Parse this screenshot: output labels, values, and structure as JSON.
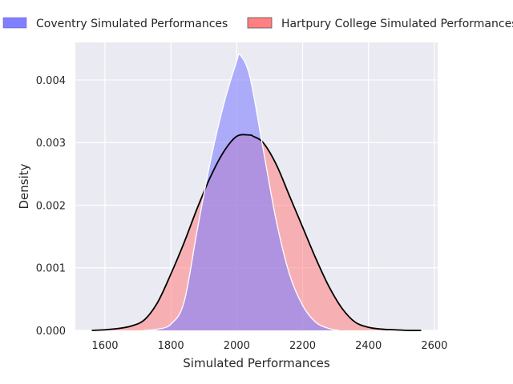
{
  "chart_data": {
    "type": "area",
    "title": "",
    "xlabel": "Simulated Performances",
    "ylabel": "Density",
    "xlim": [
      1510,
      2610
    ],
    "ylim": [
      0,
      0.0046
    ],
    "x_ticks": [
      1600,
      1800,
      2000,
      2200,
      2400,
      2600
    ],
    "y_ticks": [
      0.0,
      0.001,
      0.002,
      0.003,
      0.004
    ],
    "y_tick_labels": [
      "0.000",
      "0.001",
      "0.002",
      "0.003",
      "0.004"
    ],
    "grid": true,
    "legend_position": "top",
    "series": [
      {
        "name": "Coventry Simulated Performances",
        "color": "#8080ff",
        "fill_opacity": 0.6,
        "line_color": "#ffffff",
        "x": [
          1720,
          1760,
          1800,
          1840,
          1880,
          1920,
          1960,
          2000,
          2010,
          2040,
          2080,
          2120,
          2160,
          2200,
          2240,
          2280,
          2310
        ],
        "y": [
          0.0,
          2e-05,
          0.0001,
          0.00045,
          0.0016,
          0.0027,
          0.0036,
          0.0043,
          0.0044,
          0.00405,
          0.0029,
          0.00175,
          0.0009,
          0.0004,
          0.00013,
          3e-05,
          0.0
        ]
      },
      {
        "name": "Hartpury College Simulated Performances",
        "color": "#ff8080",
        "fill_opacity": 0.55,
        "line_color": "#000000",
        "x": [
          1560,
          1600,
          1640,
          1680,
          1720,
          1760,
          1800,
          1840,
          1880,
          1920,
          1960,
          2000,
          2040,
          2050,
          2080,
          2120,
          2160,
          2200,
          2240,
          2280,
          2320,
          2360,
          2400,
          2440,
          2480,
          2520,
          2560
        ],
        "y": [
          0.0,
          1e-05,
          3e-05,
          7e-05,
          0.00017,
          0.00045,
          0.0009,
          0.0014,
          0.00195,
          0.00245,
          0.00285,
          0.0031,
          0.00312,
          0.0031,
          0.003,
          0.00265,
          0.00215,
          0.00165,
          0.00115,
          0.0007,
          0.00035,
          0.00013,
          5e-05,
          2e-05,
          1e-05,
          0.0,
          0.0
        ]
      }
    ]
  }
}
